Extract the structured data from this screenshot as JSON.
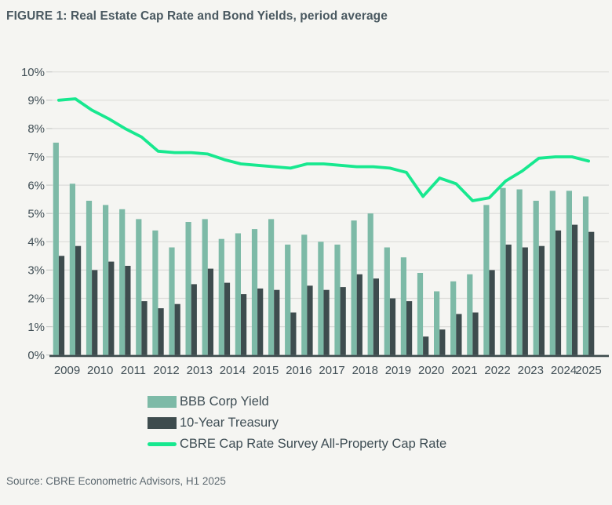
{
  "page": {
    "title": "FIGURE 1: Real Estate Cap Rate and Bond Yields, period average",
    "source": "Source: CBRE Econometric Advisors, H1 2025"
  },
  "colors": {
    "bbb": "#7dbaa7",
    "treasury": "#3e4c4e",
    "capRate": "#17e88f",
    "gridline": "#dcdcd9",
    "tick": "#c7cac8",
    "axisText": "#414f56",
    "background": "#f5f5f2"
  },
  "legend": [
    {
      "label": "BBB Corp Yield",
      "swatch": "bbb"
    },
    {
      "label": "10-Year Treasury",
      "swatch": "treasury"
    },
    {
      "label": "CBRE Cap Rate Survey All-Property Cap Rate",
      "swatch": "capRate"
    }
  ],
  "chart_data": {
    "type": "combo-bar-line",
    "title": "FIGURE 1: Real Estate Cap Rate and Bond Yields, period average",
    "xlabel": "",
    "ylabel": "",
    "ylim": [
      0,
      10
    ],
    "grid": true,
    "legend_position": "bottom",
    "y_ticks": [
      "0%",
      "1%",
      "2%",
      "3%",
      "4%",
      "5%",
      "6%",
      "7%",
      "8%",
      "9%",
      "10%"
    ],
    "x_year_labels": [
      "2009",
      "2010",
      "2011",
      "2012",
      "2013",
      "2014",
      "2015",
      "2016",
      "2017",
      "2018",
      "2019",
      "2020",
      "2021",
      "2022",
      "2023",
      "2024",
      "2025"
    ],
    "periods": [
      "2009 H1",
      "2009 H2",
      "2010 H1",
      "2010 H2",
      "2011 H1",
      "2011 H2",
      "2012 H1",
      "2012 H2",
      "2013 H1",
      "2013 H2",
      "2014 H1",
      "2014 H2",
      "2015 H1",
      "2015 H2",
      "2016 H1",
      "2016 H2",
      "2017 H1",
      "2017 H2",
      "2018 H1",
      "2018 H2",
      "2019 H1",
      "2019 H2",
      "2020 H1",
      "2020 H2",
      "2021 H1",
      "2021 H2",
      "2022 H1",
      "2022 H2",
      "2023 H1",
      "2023 H2",
      "2024 H1",
      "2024 H2",
      "2025 H1"
    ],
    "series": [
      {
        "name": "BBB Corp Yield",
        "type": "bar",
        "color": "#7dbaa7",
        "values": [
          7.5,
          6.05,
          5.45,
          5.3,
          5.15,
          4.8,
          4.4,
          3.8,
          4.7,
          4.8,
          4.1,
          4.3,
          4.45,
          4.8,
          3.9,
          4.25,
          4.0,
          3.9,
          4.75,
          5.0,
          3.8,
          3.45,
          2.9,
          2.25,
          2.6,
          2.85,
          5.3,
          5.9,
          5.85,
          5.45,
          5.8,
          5.8,
          5.6
        ]
      },
      {
        "name": "10-Year Treasury",
        "type": "bar",
        "color": "#3e4c4e",
        "values": [
          3.5,
          3.85,
          3.0,
          3.3,
          3.15,
          1.9,
          1.65,
          1.8,
          2.5,
          3.05,
          2.55,
          2.15,
          2.35,
          2.3,
          1.5,
          2.45,
          2.3,
          2.4,
          2.85,
          2.7,
          2.0,
          1.9,
          0.65,
          0.9,
          1.45,
          1.5,
          3.0,
          3.9,
          3.8,
          3.85,
          4.4,
          4.6,
          4.35
        ]
      },
      {
        "name": "CBRE Cap Rate Survey All-Property Cap Rate",
        "type": "line",
        "color": "#17e88f",
        "values": [
          9.0,
          9.05,
          8.65,
          8.35,
          8.0,
          7.7,
          7.2,
          7.15,
          7.15,
          7.1,
          6.9,
          6.75,
          6.7,
          6.65,
          6.6,
          6.75,
          6.75,
          6.7,
          6.65,
          6.65,
          6.6,
          6.45,
          5.6,
          6.25,
          6.05,
          5.45,
          5.55,
          6.15,
          6.5,
          6.95,
          7.0,
          7.0,
          6.85
        ]
      }
    ]
  }
}
